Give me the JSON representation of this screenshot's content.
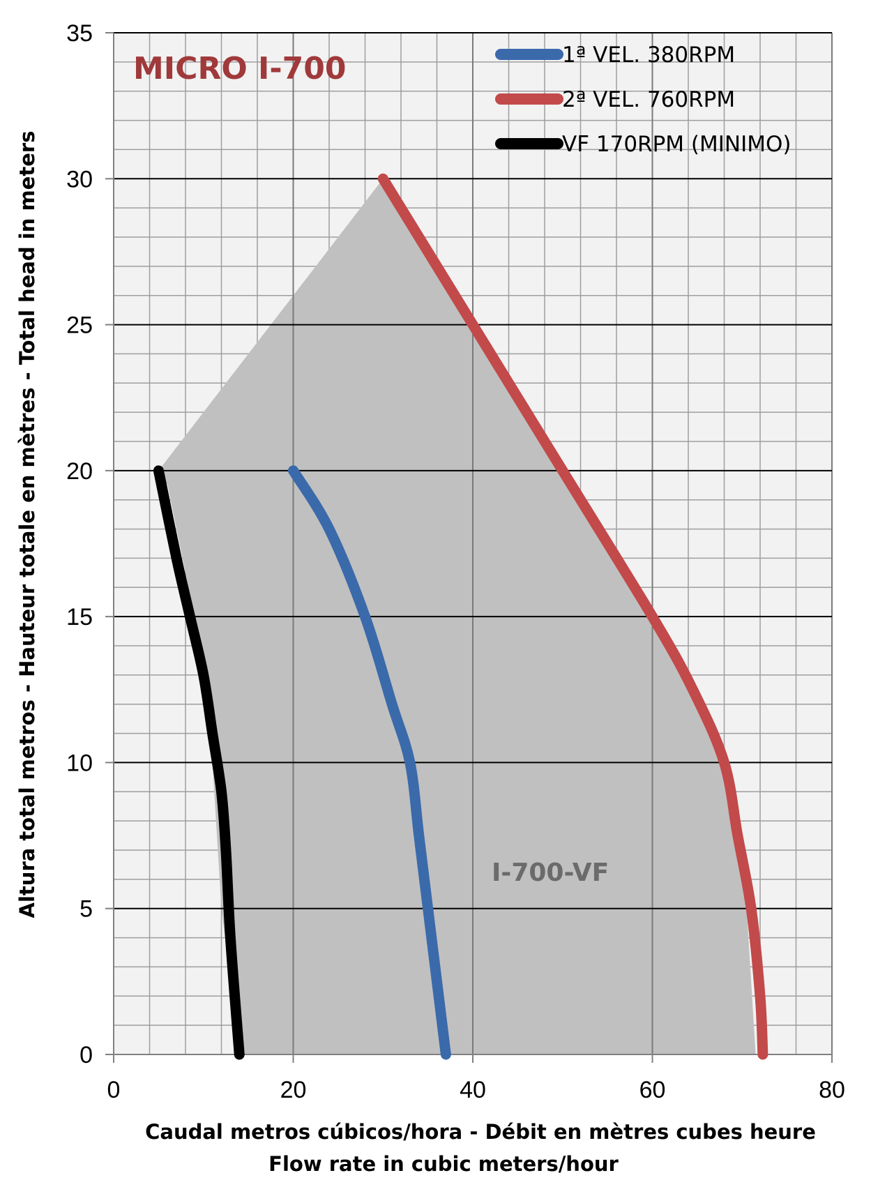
{
  "chart_data": {
    "type": "line",
    "title": "MICRO I-700",
    "title_color": "#a0393a",
    "xlabel": "Caudal metros cúbicos/hora - Débit en mètres cubes heure",
    "xlabel2": "Flow rate in cubic meters/hour",
    "ylabel": "Altura total metros - Hauteur totale en mètres - Total head in meters",
    "xlim": [
      0,
      80
    ],
    "ylim": [
      0,
      35
    ],
    "x_ticks": [
      0,
      20,
      40,
      60,
      80
    ],
    "y_ticks": [
      0,
      5,
      10,
      15,
      20,
      25,
      30,
      35
    ],
    "x_tick_labels": [
      "0",
      "20",
      "40",
      "60",
      "80"
    ],
    "y_tick_labels": [
      "0",
      "5",
      "10",
      "15",
      "20",
      "25",
      "30",
      "35"
    ],
    "minor_x_step": 4,
    "minor_y_step": 1,
    "grid": true,
    "legend_position": "top-right",
    "region": {
      "label": "I-700-VF",
      "label_color": "#6b6b6b",
      "fill": "#c0c0c0",
      "points": [
        [
          5,
          20
        ],
        [
          30,
          30
        ],
        [
          50,
          20
        ],
        [
          60,
          15
        ],
        [
          68,
          10
        ],
        [
          70.5,
          5
        ],
        [
          71.5,
          0
        ],
        [
          14,
          0
        ],
        [
          12,
          5
        ],
        [
          11,
          10
        ],
        [
          9,
          15
        ],
        [
          6,
          19.5
        ]
      ]
    },
    "series": [
      {
        "name": "1ª VEL. 380RPM",
        "color": "#3b6aab",
        "points": [
          [
            20,
            20
          ],
          [
            24,
            18
          ],
          [
            28,
            15
          ],
          [
            31,
            12
          ],
          [
            33,
            10
          ],
          [
            34,
            7.5
          ],
          [
            35,
            5
          ],
          [
            36,
            2.5
          ],
          [
            37,
            0
          ]
        ]
      },
      {
        "name": "2ª VEL. 760RPM",
        "color": "#c24a4a",
        "points": [
          [
            30,
            30
          ],
          [
            40,
            25
          ],
          [
            50,
            20
          ],
          [
            60,
            15
          ],
          [
            64.5,
            12.5
          ],
          [
            68,
            10
          ],
          [
            69.5,
            7.5
          ],
          [
            71,
            5
          ],
          [
            72,
            2
          ],
          [
            72.3,
            0
          ]
        ]
      },
      {
        "name": "VF 170RPM (MINIMO)",
        "color": "#000000",
        "points": [
          [
            5,
            20
          ],
          [
            7,
            17
          ],
          [
            8.5,
            15
          ],
          [
            10,
            13
          ],
          [
            11,
            11
          ],
          [
            12,
            9
          ],
          [
            12.5,
            7
          ],
          [
            13,
            4
          ],
          [
            14,
            0
          ]
        ]
      }
    ]
  }
}
